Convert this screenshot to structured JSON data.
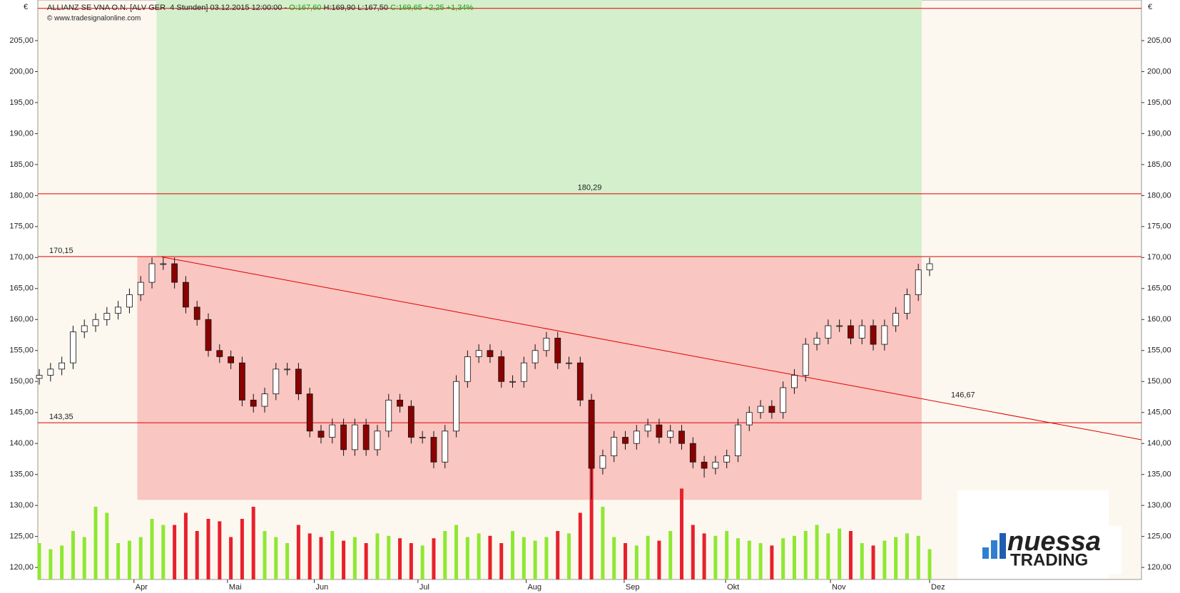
{
  "header": {
    "title": "ALLIANZ SE VNA O.N. [ALV GER  4 Stunden] 03.12.2015 12:00:00 - ",
    "open": "O:167,60",
    "hl": " H:169,90 L:167,50 ",
    "close": "C:169,65 +2,25 +1,34%",
    "copyright": "© www.tradesignalonline.com",
    "currency": "€"
  },
  "logo": {
    "line1": "nuessa",
    "line2": "TRADING"
  },
  "chart_data": {
    "type": "candlestick",
    "xlim": [
      -0.13,
      97.8
    ],
    "ylim": [
      118.06,
      211.55
    ],
    "vlim": [
      0,
      100
    ],
    "xticks": [
      {
        "value": 8.4,
        "label": "Apr"
      },
      {
        "value": 16.7,
        "label": "Mai"
      },
      {
        "value": 24.4,
        "label": "Jun"
      },
      {
        "value": 33.6,
        "label": "Jul"
      },
      {
        "value": 43.2,
        "label": "Aug"
      },
      {
        "value": 51.9,
        "label": "Sep"
      },
      {
        "value": 60.9,
        "label": "Okt"
      },
      {
        "value": 70.2,
        "label": "Nov"
      },
      {
        "value": 79,
        "label": "Dez"
      }
    ],
    "yticks": [
      {
        "value": 120,
        "label": "120,00"
      },
      {
        "value": 125,
        "label": "125,00"
      },
      {
        "value": 130,
        "label": "130,00"
      },
      {
        "value": 135,
        "label": "135,00"
      },
      {
        "value": 140,
        "label": "140,00"
      },
      {
        "value": 145,
        "label": "145,00"
      },
      {
        "value": 150,
        "label": "150,00"
      },
      {
        "value": 155,
        "label": "155,00"
      },
      {
        "value": 160,
        "label": "160,00"
      },
      {
        "value": 165,
        "label": "165,00"
      },
      {
        "value": 170,
        "label": "170,00"
      },
      {
        "value": 175,
        "label": "175,00"
      },
      {
        "value": 180,
        "label": "180,00"
      },
      {
        "value": 185,
        "label": "185,00"
      },
      {
        "value": 190,
        "label": "190,00"
      },
      {
        "value": 195,
        "label": "195,00"
      },
      {
        "value": 200,
        "label": "200,00"
      },
      {
        "value": 205,
        "label": "205,00"
      }
    ],
    "open": [
      150.5,
      151,
      152,
      153,
      158,
      159,
      160,
      161,
      162,
      164,
      166,
      169,
      169,
      166,
      162,
      160,
      155,
      154,
      153,
      147,
      146,
      148,
      152,
      152,
      148,
      142,
      141,
      143,
      139,
      143,
      139,
      142,
      147,
      146,
      141,
      141,
      137,
      142,
      150,
      154,
      155,
      154,
      150,
      150,
      153,
      155,
      157,
      153,
      153,
      147,
      136,
      138,
      141,
      140,
      142,
      143,
      141,
      142,
      140,
      137,
      136,
      137,
      138,
      143,
      145,
      146,
      145,
      149,
      151,
      156,
      157,
      159,
      159,
      157,
      159,
      156,
      159,
      161,
      164,
      168
    ],
    "high": [
      152,
      153,
      154,
      159,
      160,
      161,
      162,
      163,
      165,
      167,
      170,
      170,
      170,
      167,
      163,
      161,
      156,
      155,
      154,
      148,
      149,
      153,
      153,
      153,
      149,
      143,
      144,
      144,
      144,
      144,
      143,
      148,
      148,
      147,
      142,
      142,
      143,
      151,
      155,
      156,
      156,
      155,
      151,
      154,
      156,
      158,
      158,
      154,
      154,
      148,
      139,
      142,
      142,
      143,
      144,
      144,
      143,
      143,
      141,
      138,
      138,
      139,
      144,
      146,
      147,
      147,
      150,
      152,
      157,
      158,
      160,
      160,
      160,
      160,
      160,
      160,
      162,
      165,
      169,
      170
    ],
    "low": [
      149.5,
      150,
      151,
      152,
      157,
      158,
      159,
      160,
      161,
      163,
      165,
      168,
      165,
      161,
      159,
      154,
      153,
      152,
      146,
      145,
      145,
      147,
      151,
      147,
      141,
      140,
      140,
      138,
      138,
      138,
      138,
      141,
      145,
      140,
      140,
      136,
      136,
      141,
      149,
      153,
      153,
      149,
      149,
      149,
      152,
      154,
      152,
      152,
      146,
      131,
      135,
      137,
      139,
      139,
      141,
      140,
      140,
      139,
      136,
      134.5,
      135,
      136,
      137,
      142,
      144,
      144,
      144,
      148,
      150,
      155,
      156,
      158,
      156,
      156,
      155,
      155,
      158,
      160,
      163,
      167
    ],
    "close": [
      151,
      152,
      153,
      158,
      159,
      160,
      161,
      162,
      164,
      166,
      169,
      169,
      166,
      162,
      160,
      155,
      154,
      153,
      147,
      146,
      148,
      152,
      152,
      148,
      142,
      141,
      143,
      139,
      143,
      139,
      142,
      147,
      146,
      141,
      141,
      137,
      142,
      150,
      154,
      155,
      154,
      150,
      150,
      153,
      155,
      157,
      153,
      153,
      147,
      136,
      138,
      141,
      140,
      142,
      143,
      141,
      142,
      140,
      137,
      136,
      137,
      138,
      143,
      145,
      146,
      145,
      149,
      151,
      156,
      157,
      159,
      159,
      157,
      159,
      156,
      159,
      161,
      164,
      168,
      169
    ],
    "volume": [
      30,
      25,
      28,
      40,
      35,
      60,
      55,
      30,
      32,
      35,
      50,
      45,
      45,
      55,
      40,
      50,
      48,
      35,
      50,
      60,
      40,
      35,
      30,
      45,
      38,
      35,
      40,
      32,
      35,
      30,
      38,
      36,
      34,
      30,
      28,
      34,
      40,
      45,
      35,
      38,
      36,
      30,
      40,
      35,
      32,
      35,
      40,
      38,
      55,
      95,
      60,
      35,
      30,
      28,
      36,
      32,
      40,
      75,
      45,
      38,
      36,
      40,
      34,
      32,
      30,
      28,
      34,
      36,
      40,
      45,
      38,
      42,
      40,
      30,
      28,
      32,
      35,
      38,
      36,
      25
    ],
    "up_color": "#8ee832",
    "down_color": "#e8202c",
    "candle_down": "#8b0000",
    "line_color": "#e00000",
    "zones": [
      {
        "x": [
          10.4,
          78.3
        ],
        "y": [
          170.15,
          211.55
        ],
        "color": "#d4efcc"
      },
      {
        "x": [
          8.7,
          78.3
        ],
        "y": [
          130.9,
          170.15
        ],
        "color": "#f9c6c1"
      }
    ],
    "top_line": 210.2,
    "levels": [
      {
        "value": 180.29,
        "label": "180,29"
      },
      {
        "value": 170.15,
        "label": "170,15"
      },
      {
        "value": 143.35,
        "label": "143,35"
      }
    ],
    "trendline": {
      "x": [
        10.87,
        97.8
      ],
      "y": [
        170.1,
        140.6
      ],
      "label": "146,67",
      "label_x": 80.7
    }
  }
}
